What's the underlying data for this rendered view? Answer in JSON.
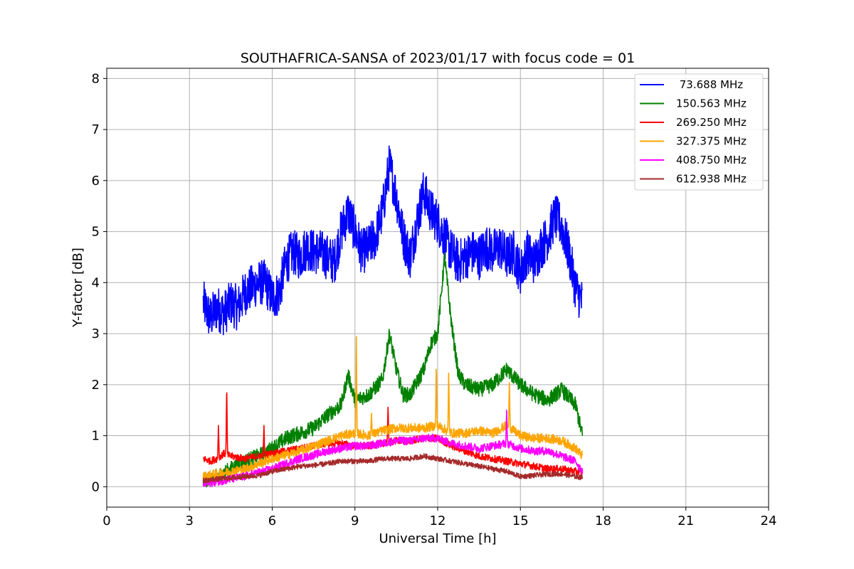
{
  "chart_data": {
    "type": "line",
    "title": "SOUTHAFRICA-SANSA of 2023/01/17 with focus code = 01",
    "xlabel": "Universal Time [h]",
    "ylabel": "Y-factor [dB]",
    "xlim": [
      0,
      24
    ],
    "ylim": [
      -0.4,
      8.2
    ],
    "xticks": [
      0,
      3,
      6,
      9,
      12,
      15,
      18,
      21,
      24
    ],
    "yticks": [
      0,
      1,
      2,
      3,
      4,
      5,
      6,
      7,
      8
    ],
    "grid": true,
    "legend_position": "top-right",
    "x_start": 3.5,
    "x_end": 17.25,
    "series": [
      {
        "name": " 73.688 MHz",
        "color": "#0000ff",
        "noise": 0.45,
        "values": [
          [
            3.5,
            3.6
          ],
          [
            3.75,
            3.3
          ],
          [
            4,
            3.5
          ],
          [
            4.25,
            3.4
          ],
          [
            4.5,
            3.6
          ],
          [
            4.75,
            3.5
          ],
          [
            5,
            3.8
          ],
          [
            5.25,
            3.9
          ],
          [
            5.5,
            4.0
          ],
          [
            5.75,
            4.0
          ],
          [
            6,
            3.7
          ],
          [
            6.25,
            3.8
          ],
          [
            6.5,
            4.4
          ],
          [
            6.75,
            4.6
          ],
          [
            7,
            4.5
          ],
          [
            7.25,
            4.7
          ],
          [
            7.5,
            4.6
          ],
          [
            7.75,
            4.6
          ],
          [
            8,
            4.5
          ],
          [
            8.25,
            4.4
          ],
          [
            8.5,
            5.0
          ],
          [
            8.75,
            5.4
          ],
          [
            9,
            5.0
          ],
          [
            9.25,
            4.6
          ],
          [
            9.5,
            4.7
          ],
          [
            9.75,
            4.9
          ],
          [
            10,
            5.4
          ],
          [
            10.25,
            6.3
          ],
          [
            10.5,
            5.7
          ],
          [
            10.75,
            4.9
          ],
          [
            11,
            4.5
          ],
          [
            11.25,
            5.2
          ],
          [
            11.5,
            5.8
          ],
          [
            11.75,
            5.4
          ],
          [
            12,
            5.2
          ],
          [
            12.25,
            4.9
          ],
          [
            12.5,
            4.6
          ],
          [
            12.75,
            4.4
          ],
          [
            13,
            4.5
          ],
          [
            13.25,
            4.6
          ],
          [
            13.5,
            4.5
          ],
          [
            13.75,
            4.7
          ],
          [
            14,
            4.6
          ],
          [
            14.25,
            4.7
          ],
          [
            14.5,
            4.5
          ],
          [
            14.75,
            4.6
          ],
          [
            15,
            4.2
          ],
          [
            15.25,
            4.6
          ],
          [
            15.5,
            4.4
          ],
          [
            15.75,
            4.7
          ],
          [
            16,
            4.9
          ],
          [
            16.25,
            5.3
          ],
          [
            16.5,
            5.1
          ],
          [
            16.75,
            4.6
          ],
          [
            17,
            3.9
          ],
          [
            17.25,
            3.6
          ]
        ]
      },
      {
        "name": "150.563 MHz",
        "color": "#008000",
        "noise": 0.15,
        "values": [
          [
            3.5,
            0.12
          ],
          [
            4,
            0.2
          ],
          [
            4.5,
            0.35
          ],
          [
            5,
            0.5
          ],
          [
            5.5,
            0.6
          ],
          [
            6,
            0.75
          ],
          [
            6.5,
            0.95
          ],
          [
            7,
            1.05
          ],
          [
            7.5,
            1.15
          ],
          [
            8,
            1.4
          ],
          [
            8.5,
            1.6
          ],
          [
            8.75,
            2.2
          ],
          [
            9,
            1.7
          ],
          [
            9.5,
            1.8
          ],
          [
            10,
            2.1
          ],
          [
            10.25,
            3.0
          ],
          [
            10.5,
            2.3
          ],
          [
            10.75,
            1.8
          ],
          [
            11,
            1.8
          ],
          [
            11.5,
            2.3
          ],
          [
            11.75,
            2.8
          ],
          [
            12,
            3.0
          ],
          [
            12.25,
            4.5
          ],
          [
            12.5,
            3.2
          ],
          [
            12.75,
            2.2
          ],
          [
            13,
            2.0
          ],
          [
            13.5,
            1.9
          ],
          [
            14,
            2.0
          ],
          [
            14.5,
            2.3
          ],
          [
            15,
            2.0
          ],
          [
            15.5,
            1.8
          ],
          [
            16,
            1.7
          ],
          [
            16.5,
            1.9
          ],
          [
            17,
            1.6
          ],
          [
            17.25,
            1.0
          ]
        ]
      },
      {
        "name": "269.250 MHz",
        "color": "#ff0000",
        "noise": 0.07,
        "values": [
          [
            3.5,
            0.55
          ],
          [
            3.75,
            0.5
          ],
          [
            4,
            0.55
          ],
          [
            4.25,
            0.65
          ],
          [
            4.5,
            0.6
          ],
          [
            5,
            0.55
          ],
          [
            5.5,
            0.6
          ],
          [
            6,
            0.65
          ],
          [
            6.5,
            0.7
          ],
          [
            7,
            0.75
          ],
          [
            7.5,
            0.8
          ],
          [
            8,
            0.85
          ],
          [
            8.5,
            0.85
          ],
          [
            9,
            0.8
          ],
          [
            9.5,
            0.8
          ],
          [
            10,
            0.85
          ],
          [
            10.5,
            0.9
          ],
          [
            11,
            0.9
          ],
          [
            11.5,
            0.95
          ],
          [
            12,
            0.95
          ],
          [
            12.5,
            0.8
          ],
          [
            13,
            0.7
          ],
          [
            13.5,
            0.6
          ],
          [
            14,
            0.55
          ],
          [
            14.5,
            0.5
          ],
          [
            15,
            0.45
          ],
          [
            15.5,
            0.4
          ],
          [
            16,
            0.35
          ],
          [
            16.5,
            0.35
          ],
          [
            17,
            0.3
          ],
          [
            17.25,
            0.3
          ]
        ],
        "spikes": [
          [
            4.05,
            1.2
          ],
          [
            4.35,
            2.05
          ],
          [
            5.7,
            1.2
          ],
          [
            10.2,
            1.6
          ]
        ]
      },
      {
        "name": "327.375 MHz",
        "color": "#ffa500",
        "noise": 0.09,
        "values": [
          [
            3.5,
            0.2
          ],
          [
            4,
            0.25
          ],
          [
            4.5,
            0.3
          ],
          [
            5,
            0.35
          ],
          [
            5.5,
            0.45
          ],
          [
            6,
            0.55
          ],
          [
            6.5,
            0.62
          ],
          [
            7,
            0.7
          ],
          [
            7.5,
            0.8
          ],
          [
            8,
            0.9
          ],
          [
            8.5,
            1.0
          ],
          [
            9,
            1.05
          ],
          [
            9.5,
            1.0
          ],
          [
            10,
            1.1
          ],
          [
            10.5,
            1.15
          ],
          [
            11,
            1.15
          ],
          [
            11.5,
            1.15
          ],
          [
            12,
            1.2
          ],
          [
            12.5,
            1.05
          ],
          [
            13,
            1.05
          ],
          [
            13.5,
            1.1
          ],
          [
            14,
            1.05
          ],
          [
            14.5,
            1.2
          ],
          [
            15,
            1.0
          ],
          [
            15.5,
            0.95
          ],
          [
            16,
            0.95
          ],
          [
            16.5,
            0.9
          ],
          [
            17,
            0.75
          ],
          [
            17.25,
            0.6
          ]
        ],
        "spikes": [
          [
            9.05,
            3.0
          ],
          [
            9.6,
            1.45
          ],
          [
            11.95,
            2.45
          ],
          [
            12.4,
            2.3
          ],
          [
            14.6,
            2.1
          ]
        ]
      },
      {
        "name": "408.750 MHz",
        "color": "#ff00ff",
        "noise": 0.08,
        "values": [
          [
            3.5,
            0.05
          ],
          [
            4,
            0.1
          ],
          [
            4.5,
            0.15
          ],
          [
            5,
            0.2
          ],
          [
            5.5,
            0.28
          ],
          [
            6,
            0.35
          ],
          [
            6.5,
            0.45
          ],
          [
            7,
            0.55
          ],
          [
            7.5,
            0.62
          ],
          [
            8,
            0.7
          ],
          [
            8.5,
            0.75
          ],
          [
            9,
            0.8
          ],
          [
            9.5,
            0.8
          ],
          [
            10,
            0.85
          ],
          [
            10.5,
            0.9
          ],
          [
            11,
            0.9
          ],
          [
            11.5,
            0.95
          ],
          [
            12,
            0.95
          ],
          [
            12.5,
            0.85
          ],
          [
            13,
            0.8
          ],
          [
            13.5,
            0.75
          ],
          [
            14,
            0.8
          ],
          [
            14.5,
            0.85
          ],
          [
            15,
            0.75
          ],
          [
            15.5,
            0.7
          ],
          [
            16,
            0.7
          ],
          [
            16.5,
            0.6
          ],
          [
            17,
            0.5
          ],
          [
            17.25,
            0.3
          ]
        ],
        "spikes": [
          [
            14.5,
            1.5
          ]
        ]
      },
      {
        "name": "612.938 MHz",
        "color": "#a52a2a",
        "noise": 0.05,
        "values": [
          [
            3.5,
            0.12
          ],
          [
            4,
            0.15
          ],
          [
            4.5,
            0.17
          ],
          [
            5,
            0.2
          ],
          [
            5.5,
            0.22
          ],
          [
            6,
            0.3
          ],
          [
            6.5,
            0.35
          ],
          [
            7,
            0.4
          ],
          [
            7.5,
            0.42
          ],
          [
            8,
            0.45
          ],
          [
            8.5,
            0.5
          ],
          [
            9,
            0.5
          ],
          [
            9.5,
            0.5
          ],
          [
            10,
            0.55
          ],
          [
            10.5,
            0.55
          ],
          [
            11,
            0.55
          ],
          [
            11.5,
            0.6
          ],
          [
            12,
            0.55
          ],
          [
            12.5,
            0.5
          ],
          [
            13,
            0.45
          ],
          [
            13.5,
            0.4
          ],
          [
            14,
            0.35
          ],
          [
            14.5,
            0.3
          ],
          [
            15,
            0.2
          ],
          [
            15.5,
            0.22
          ],
          [
            16,
            0.25
          ],
          [
            16.5,
            0.25
          ],
          [
            17,
            0.2
          ],
          [
            17.25,
            0.18
          ]
        ]
      }
    ]
  }
}
